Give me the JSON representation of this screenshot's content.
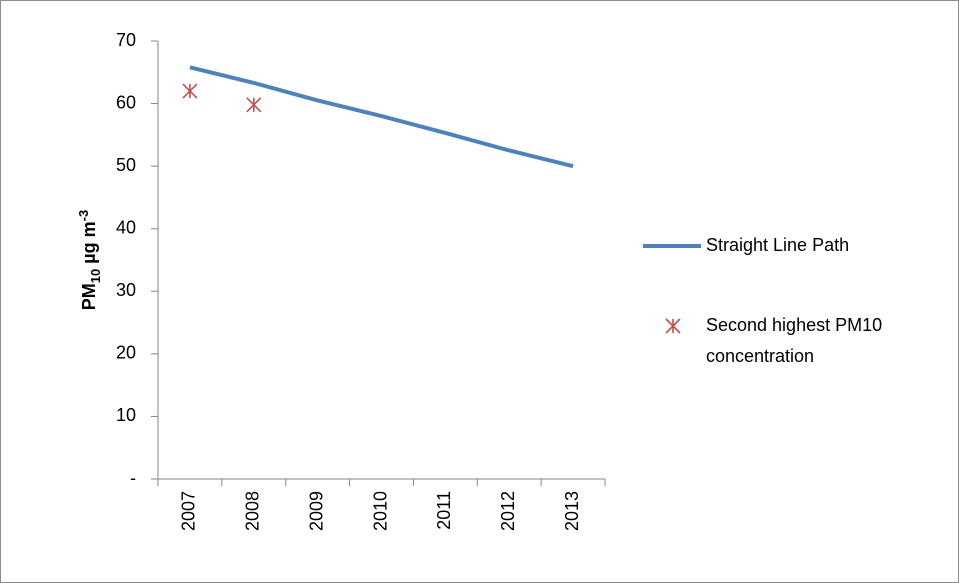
{
  "chart_data": {
    "type": "line",
    "y_label": {
      "base": "PM",
      "sub": "10",
      "unit": " µg m",
      "sup": "-3"
    },
    "categories": [
      "2007",
      "2008",
      "2009",
      "2010",
      "2011",
      "2012",
      "2013"
    ],
    "series": [
      {
        "name": "Straight Line Path",
        "type": "line",
        "color": "#4f81bd",
        "values": [
          65.8,
          63.3,
          60.5,
          58.0,
          55.3,
          52.5,
          50.0
        ]
      },
      {
        "name": "Second highest PM10 concentration",
        "type": "scatter",
        "color": "#c0504d",
        "values": [
          62.0,
          59.8,
          null,
          null,
          null,
          null,
          null
        ]
      }
    ],
    "ylim": [
      0,
      70
    ],
    "yticks": [
      {
        "value": 0,
        "label": "-"
      },
      10,
      20,
      30,
      40,
      50,
      60,
      70
    ],
    "grid": false,
    "legend": "right"
  }
}
